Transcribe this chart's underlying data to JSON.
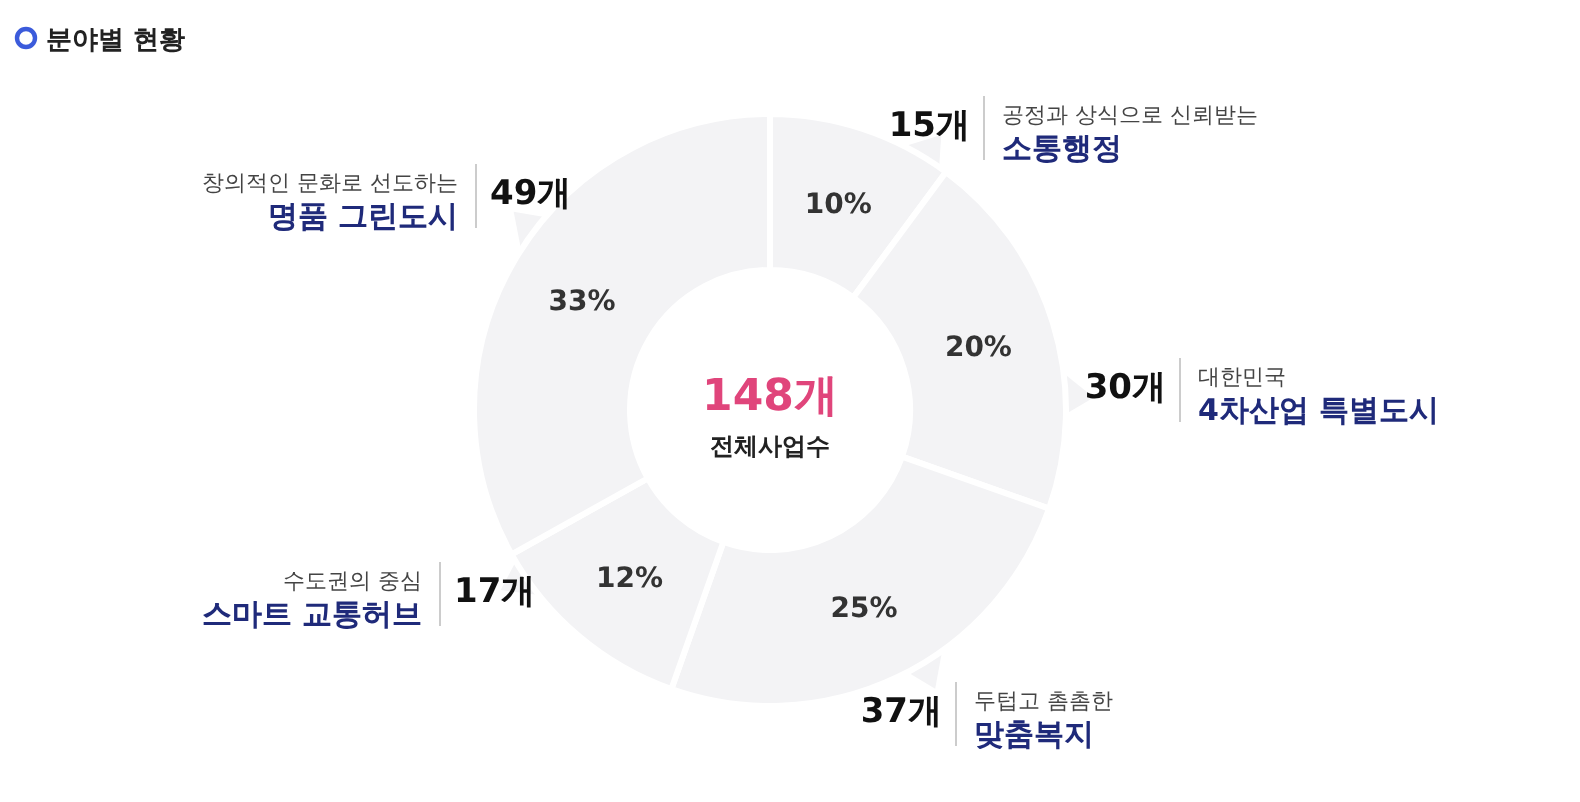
{
  "chart_data": {
    "type": "donut",
    "title": "분야별 현황",
    "categories": [
      "소통행정",
      "4차산업 특별도시",
      "맞춤복지",
      "스마트 교통허브",
      "명품 그린도시"
    ],
    "values": [
      15,
      30,
      37,
      17,
      49
    ],
    "colors": [
      "#f3f3f5",
      "#f3f3f5",
      "#f3f3f5",
      "#f3f3f5",
      "#f3f3f5"
    ],
    "value_labels": [
      "15개",
      "30개",
      "37개",
      "17개",
      "49개"
    ],
    "annotations": [
      "148개",
      "전체사업수",
      {
        "text": "공정과 상식으로 신뢰받는",
        "x": "소통행정"
      },
      {
        "text": "대한민국",
        "x": "4차산업 특별도시"
      },
      {
        "text": "두텁고 촘촘한",
        "x": "맞춤복지"
      },
      {
        "text": "수도권의 중심",
        "x": "스마트 교통허브"
      },
      {
        "text": "창의적인 문화로 선도하는",
        "x": "명품 그린도시"
      },
      {
        "text": "10%",
        "x": "소통행정"
      },
      {
        "text": "20%",
        "x": "4차산업 특별도시"
      },
      {
        "text": "25%",
        "x": "맞춤복지"
      },
      {
        "text": "12%",
        "x": "스마트 교통허브"
      },
      {
        "text": "33%",
        "x": "명품 그린도시"
      }
    ]
  }
}
